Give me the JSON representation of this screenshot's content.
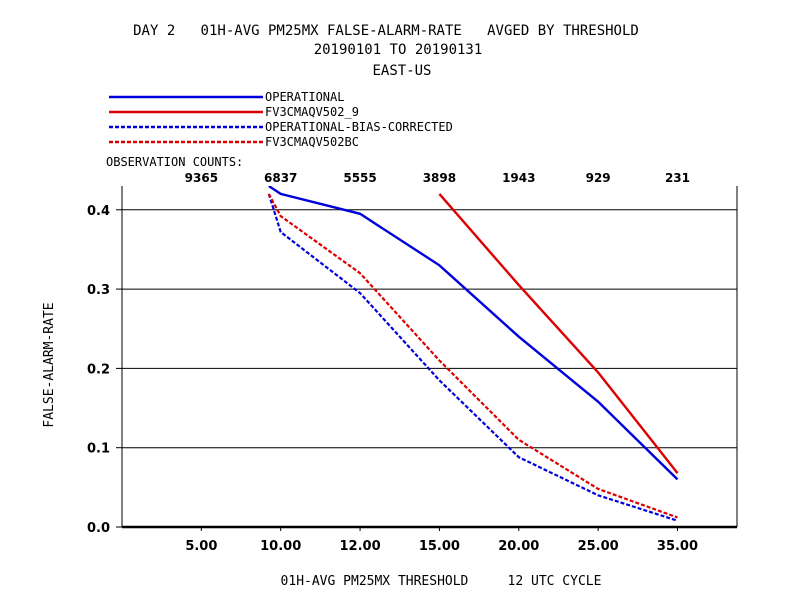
{
  "chart_data": {
    "type": "line",
    "title": "DAY 2   01H-AVG PM25MX FALSE-ALARM-RATE   AVGED BY THRESHOLD",
    "subtitle": "20190101 TO 20190131",
    "region": "EAST-US",
    "xlabel": "01H-AVG PM25MX THRESHOLD     12 UTC CYCLE",
    "ylabel": "FALSE-ALARM-RATE",
    "x_tick_labels": [
      "5.00",
      "10.00",
      "12.00",
      "15.00",
      "20.00",
      "25.00",
      "35.00"
    ],
    "x_tick_values": [
      1,
      2,
      3,
      4,
      5,
      6,
      7
    ],
    "xlim": [
      0,
      7.75
    ],
    "ylim": [
      0,
      0.43
    ],
    "y_ticks": [
      0.0,
      0.1,
      0.2,
      0.3,
      0.4
    ],
    "y_tick_labels": [
      "0.0",
      "0.1",
      "0.2",
      "0.3",
      "0.4"
    ],
    "grid": true,
    "legend_position": "top-left",
    "observation_counts_label": "OBSERVATION COUNTS:",
    "observation_counts": [
      {
        "x": 1,
        "label": "9365"
      },
      {
        "x": 2,
        "label": "6837"
      },
      {
        "x": 3,
        "label": "5555"
      },
      {
        "x": 4,
        "label": "3898"
      },
      {
        "x": 5,
        "label": "1943"
      },
      {
        "x": 6,
        "label": "929"
      },
      {
        "x": 7,
        "label": "231"
      }
    ],
    "series": [
      {
        "name": "OPERATIONAL",
        "color": "#0000dd",
        "dashed": false,
        "points": [
          [
            1.85,
            0.43
          ],
          [
            2.0,
            0.42
          ],
          [
            3.0,
            0.395
          ],
          [
            4.0,
            0.33
          ],
          [
            5.0,
            0.24
          ],
          [
            6.0,
            0.158
          ],
          [
            7.0,
            0.06
          ]
        ]
      },
      {
        "name": "FV3CMAQV502_9",
        "color": "#dd0000",
        "dashed": false,
        "points": [
          [
            4.0,
            0.42
          ],
          [
            5.0,
            0.305
          ],
          [
            6.0,
            0.195
          ],
          [
            7.0,
            0.068
          ]
        ]
      },
      {
        "name": "OPERATIONAL-BIAS-CORRECTED",
        "color": "#0000dd",
        "dashed": true,
        "points": [
          [
            1.85,
            0.42
          ],
          [
            2.0,
            0.372
          ],
          [
            3.0,
            0.295
          ],
          [
            4.0,
            0.185
          ],
          [
            5.0,
            0.088
          ],
          [
            6.0,
            0.04
          ],
          [
            7.0,
            0.008
          ]
        ]
      },
      {
        "name": "FV3CMAQV502BC",
        "color": "#dd0000",
        "dashed": true,
        "points": [
          [
            1.85,
            0.42
          ],
          [
            2.0,
            0.392
          ],
          [
            3.0,
            0.32
          ],
          [
            4.0,
            0.21
          ],
          [
            5.0,
            0.11
          ],
          [
            6.0,
            0.048
          ],
          [
            7.0,
            0.012
          ]
        ]
      }
    ]
  }
}
